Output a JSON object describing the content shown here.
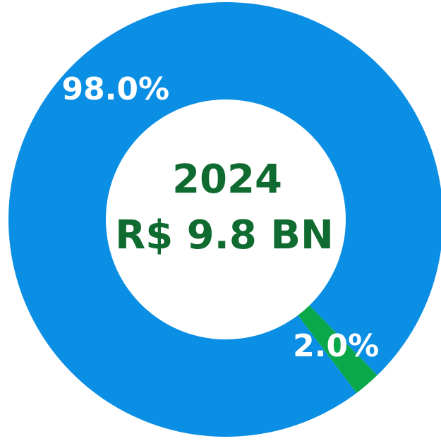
{
  "chart_data": {
    "type": "donut",
    "title": "2024",
    "subtitle": "R$ 9.8 BN",
    "values": [
      98.0,
      2.0
    ],
    "value_labels": [
      "98.0%",
      "2.0%"
    ],
    "colors": [
      "#0b8fe4",
      "#0aa84b"
    ]
  }
}
